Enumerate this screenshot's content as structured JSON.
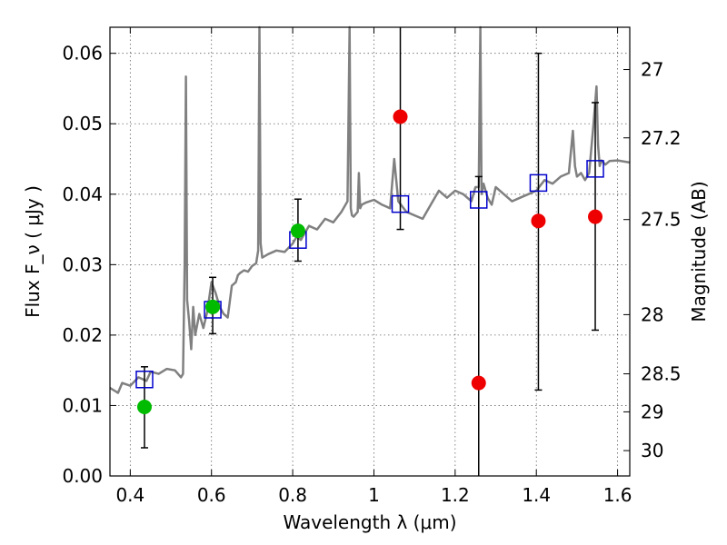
{
  "chart_data": {
    "type": "scatter",
    "xlabel": "Wavelength  λ (μm)",
    "ylabel": "Flux  F_ν  ( μJy )",
    "y2label": "Magnitude (AB)",
    "xlim": [
      0.35,
      1.63
    ],
    "ylim": [
      0.0,
      0.0637
    ],
    "grid": true,
    "xticks": [
      0.4,
      0.6,
      0.8,
      1.0,
      1.2,
      1.4,
      1.6
    ],
    "xtick_labels": [
      "0.4",
      "0.6",
      "0.8",
      "1",
      "1.2",
      "1.4",
      "1.6"
    ],
    "yticks": [
      0.0,
      0.01,
      0.02,
      0.03,
      0.04,
      0.05,
      0.06
    ],
    "ytick_labels": [
      "0.00",
      "0.01",
      "0.02",
      "0.03",
      "0.04",
      "0.05",
      "0.06"
    ],
    "y2ticks": [
      {
        "label": "27",
        "flux": 0.0577
      },
      {
        "label": "27.2",
        "flux": 0.048
      },
      {
        "label": "27.5",
        "flux": 0.0364
      },
      {
        "label": "28",
        "flux": 0.0229
      },
      {
        "label": "28.5",
        "flux": 0.0145
      },
      {
        "label": "29",
        "flux": 0.0091
      },
      {
        "label": "30",
        "flux": 0.0036
      }
    ],
    "series": [
      {
        "kind": "line",
        "color": "#808080",
        "x": [
          0.35,
          0.37,
          0.38,
          0.4,
          0.42,
          0.44,
          0.45,
          0.47,
          0.49,
          0.51,
          0.525,
          0.53,
          0.534,
          0.537,
          0.54,
          0.545,
          0.55,
          0.555,
          0.56,
          0.57,
          0.58,
          0.59,
          0.6,
          0.61,
          0.62,
          0.63,
          0.64,
          0.65,
          0.66,
          0.665,
          0.67,
          0.68,
          0.69,
          0.7,
          0.71,
          0.715,
          0.718,
          0.721,
          0.725,
          0.74,
          0.76,
          0.78,
          0.8,
          0.81,
          0.82,
          0.83,
          0.84,
          0.86,
          0.88,
          0.9,
          0.92,
          0.935,
          0.94,
          0.943,
          0.946,
          0.95,
          0.96,
          0.963,
          0.966,
          0.97,
          0.98,
          1.0,
          1.02,
          1.04,
          1.05,
          1.06,
          1.08,
          1.1,
          1.12,
          1.14,
          1.16,
          1.18,
          1.2,
          1.22,
          1.24,
          1.25,
          1.258,
          1.262,
          1.265,
          1.27,
          1.28,
          1.29,
          1.3,
          1.32,
          1.34,
          1.36,
          1.38,
          1.4,
          1.42,
          1.44,
          1.46,
          1.48,
          1.49,
          1.495,
          1.5,
          1.51,
          1.52,
          1.53,
          1.54,
          1.548,
          1.552,
          1.556,
          1.56,
          1.57,
          1.58,
          1.6,
          1.63
        ],
        "y": [
          0.0125,
          0.0118,
          0.0132,
          0.0128,
          0.014,
          0.0135,
          0.0148,
          0.0145,
          0.0152,
          0.015,
          0.014,
          0.0145,
          0.03,
          0.0567,
          0.025,
          0.022,
          0.018,
          0.024,
          0.02,
          0.023,
          0.021,
          0.0235,
          0.0275,
          0.026,
          0.024,
          0.023,
          0.0225,
          0.027,
          0.0275,
          0.0285,
          0.0288,
          0.0292,
          0.029,
          0.0298,
          0.0302,
          0.032,
          0.0637,
          0.033,
          0.031,
          0.0315,
          0.032,
          0.0318,
          0.033,
          0.034,
          0.0335,
          0.0345,
          0.0355,
          0.035,
          0.0365,
          0.036,
          0.0375,
          0.039,
          0.0637,
          0.038,
          0.037,
          0.0368,
          0.0375,
          0.043,
          0.038,
          0.0385,
          0.0388,
          0.0392,
          0.0385,
          0.038,
          0.045,
          0.039,
          0.0375,
          0.037,
          0.0365,
          0.0385,
          0.0405,
          0.0395,
          0.0405,
          0.04,
          0.039,
          0.041,
          0.041,
          0.0637,
          0.04,
          0.0415,
          0.0395,
          0.0385,
          0.041,
          0.04,
          0.039,
          0.0395,
          0.04,
          0.0405,
          0.042,
          0.0415,
          0.0425,
          0.043,
          0.049,
          0.044,
          0.0425,
          0.043,
          0.042,
          0.043,
          0.0495,
          0.0553,
          0.047,
          0.044,
          0.0448,
          0.0442,
          0.0447,
          0.0448,
          0.0445
        ]
      },
      {
        "kind": "open-squares",
        "color": "#0000cc",
        "x": [
          0.435,
          0.603,
          0.813,
          1.065,
          1.258,
          1.405,
          1.545
        ],
        "y": [
          0.0137,
          0.0236,
          0.0335,
          0.0386,
          0.0392,
          0.0416,
          0.0436
        ]
      },
      {
        "kind": "points-with-errorbars",
        "color": "#00bb00",
        "x": [
          0.435,
          0.603,
          0.813
        ],
        "y": [
          0.0098,
          0.024,
          0.0348
        ],
        "yerr_low": [
          0.004,
          0.0202,
          0.0305
        ],
        "yerr_high": [
          0.0155,
          0.0282,
          0.0393
        ]
      },
      {
        "kind": "points-with-errorbars",
        "color": "#ee0000",
        "x": [
          1.065,
          1.258,
          1.405,
          1.545
        ],
        "y": [
          0.051,
          0.0132,
          0.0362,
          0.0368
        ],
        "yerr_low": [
          0.035,
          0.0,
          0.0122,
          0.0207
        ],
        "yerr_high": [
          0.0637,
          0.0425,
          0.06,
          0.053
        ]
      }
    ]
  }
}
